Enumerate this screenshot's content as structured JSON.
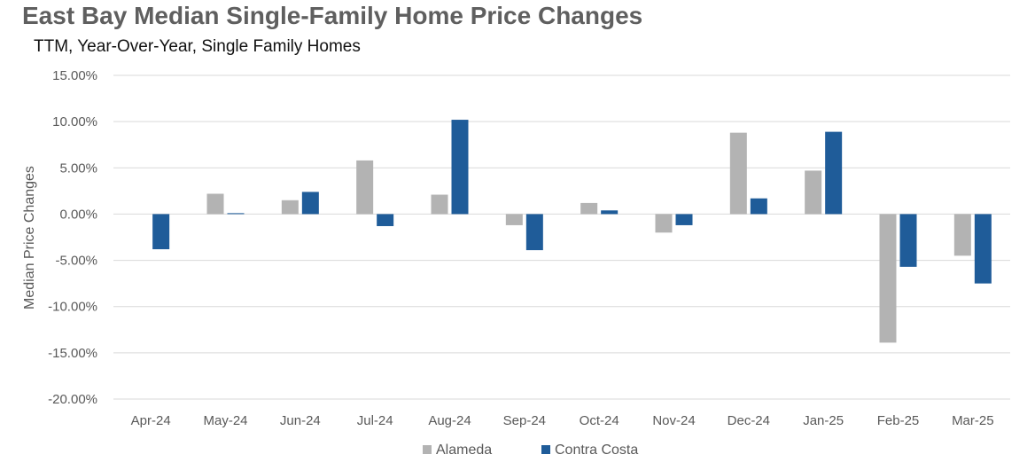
{
  "chart_data": {
    "type": "bar",
    "title": "East Bay Median Single-Family Home Price Changes",
    "subtitle": "TTM, Year-Over-Year,  Single Family Homes",
    "ylabel": "Median Price Changes",
    "xlabel": "",
    "ylim": [
      -0.2,
      0.15
    ],
    "yticks": [
      0.15,
      0.1,
      0.05,
      0.0,
      -0.05,
      -0.1,
      -0.15,
      -0.2
    ],
    "ytick_labels": [
      "15.00%",
      "10.00%",
      "5.00%",
      "0.00%",
      "-5.00%",
      "-10.00%",
      "-15.00%",
      "-20.00%"
    ],
    "grid": true,
    "legend_position": "bottom",
    "categories": [
      "Apr-24",
      "May-24",
      "Jun-24",
      "Jul-24",
      "Aug-24",
      "Sep-24",
      "Oct-24",
      "Nov-24",
      "Dec-24",
      "Jan-25",
      "Feb-25",
      "Mar-25"
    ],
    "series": [
      {
        "name": "Alameda",
        "color": "#b3b3b3",
        "values": [
          0.0,
          0.022,
          0.015,
          0.058,
          0.021,
          -0.012,
          0.012,
          -0.02,
          0.088,
          0.047,
          -0.139,
          -0.045
        ]
      },
      {
        "name": "Contra Costa",
        "color": "#1f5c99",
        "values": [
          -0.038,
          0.001,
          0.024,
          -0.013,
          0.102,
          -0.039,
          0.004,
          -0.012,
          0.017,
          0.089,
          -0.057,
          -0.075
        ]
      }
    ]
  }
}
